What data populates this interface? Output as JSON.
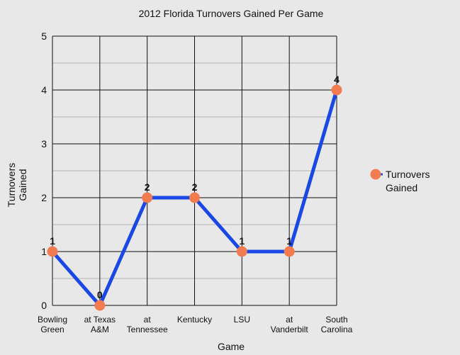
{
  "chart_data": {
    "type": "line",
    "title": "2012 Florida Turnovers Gained Per Game",
    "xlabel": "Game",
    "ylabel": [
      "Turnovers",
      "Gained"
    ],
    "categories": [
      [
        "Bowling",
        "Green"
      ],
      [
        "at Texas",
        "A&M"
      ],
      [
        "at",
        "Tennessee"
      ],
      [
        "Kentucky"
      ],
      [
        "LSU"
      ],
      [
        "at",
        "Vanderbilt"
      ],
      [
        "South",
        "Carolina"
      ]
    ],
    "series": [
      {
        "name": [
          "Turnovers",
          "Gained"
        ],
        "values": [
          1,
          0,
          2,
          2,
          1,
          1,
          4
        ],
        "data_labels": [
          "1",
          "0",
          "2",
          "2",
          "1",
          "1",
          "4"
        ]
      }
    ],
    "ylim": [
      0,
      5
    ],
    "yticks": [
      "0",
      "1",
      "2",
      "3",
      "4",
      "5"
    ],
    "grid": true,
    "legend_position": "right",
    "colors": {
      "line": "#1a48e6",
      "marker": "#f27c4f",
      "grid_major": "#111111",
      "grid_minor": "#b5b5b5",
      "background": "#e8e8e8"
    }
  }
}
